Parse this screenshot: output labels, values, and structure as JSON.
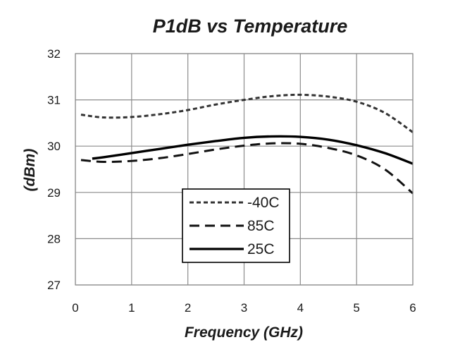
{
  "chart_data": {
    "type": "line",
    "title": "P1dB vs Temperature",
    "xlabel": "Frequency (GHz)",
    "ylabel": "(dBm)",
    "xlim": [
      0,
      6
    ],
    "ylim": [
      27,
      32
    ],
    "xticks": [
      "0",
      "1",
      "2",
      "3",
      "4",
      "5",
      "6"
    ],
    "yticks": [
      "27",
      "28",
      "29",
      "30",
      "31",
      "32"
    ],
    "grid": true,
    "legend_position": "center-left",
    "series": [
      {
        "name": "-40C",
        "style": "short-dash",
        "color": "#333333",
        "x": [
          0.1,
          0.5,
          1.0,
          1.5,
          2.0,
          2.5,
          3.0,
          3.5,
          4.0,
          4.5,
          5.0,
          5.5,
          6.0
        ],
        "y": [
          30.68,
          30.62,
          30.63,
          30.69,
          30.78,
          30.9,
          31.0,
          31.08,
          31.11,
          31.07,
          30.96,
          30.72,
          30.3
        ]
      },
      {
        "name": "85C",
        "style": "long-dash",
        "color": "#111111",
        "x": [
          0.1,
          0.5,
          1.0,
          1.5,
          2.0,
          2.5,
          3.0,
          3.5,
          4.0,
          4.5,
          5.0,
          5.5,
          6.0
        ],
        "y": [
          29.7,
          29.66,
          29.68,
          29.74,
          29.83,
          29.93,
          30.01,
          30.06,
          30.05,
          29.96,
          29.8,
          29.5,
          28.98
        ]
      },
      {
        "name": "25C",
        "style": "solid",
        "color": "#000000",
        "x": [
          0.3,
          0.5,
          1.0,
          1.5,
          2.0,
          2.5,
          3.0,
          3.5,
          4.0,
          4.5,
          5.0,
          5.5,
          6.0
        ],
        "y": [
          29.73,
          29.76,
          29.85,
          29.94,
          30.03,
          30.11,
          30.18,
          30.21,
          30.2,
          30.14,
          30.02,
          29.85,
          29.62
        ]
      }
    ]
  }
}
